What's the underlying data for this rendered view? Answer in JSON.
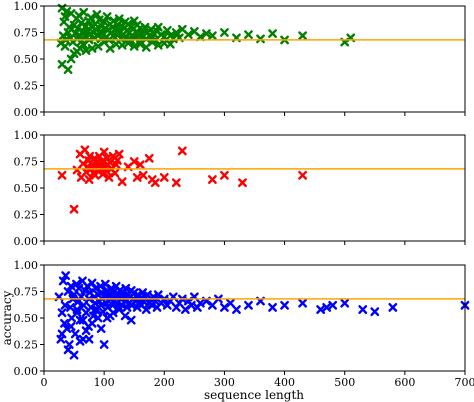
{
  "chart_data": [
    {
      "type": "scatter",
      "title": "",
      "xlabel": "",
      "ylabel": "",
      "xlim": [
        0,
        700
      ],
      "ylim": [
        0,
        1.0
      ],
      "yticks": [
        "0.00",
        "0.25",
        "0.50",
        "0.75",
        "1.00"
      ],
      "xticks": [],
      "grid": false,
      "legend": "none",
      "marker": "x",
      "color": "#008000",
      "reference_line": {
        "y": 0.68,
        "color": "#ffa500"
      },
      "series": [
        {
          "x": [
            28,
            30,
            32,
            33,
            35,
            36,
            38,
            40,
            42,
            44,
            45,
            46,
            48,
            50,
            52,
            54,
            55,
            56,
            58,
            60,
            62,
            63,
            65,
            66,
            68,
            70,
            72,
            74,
            75,
            76,
            78,
            80,
            82,
            84,
            85,
            86,
            88,
            90,
            92,
            94,
            95,
            96,
            98,
            100,
            102,
            104,
            105,
            106,
            108,
            110,
            112,
            114,
            115,
            116,
            118,
            120,
            122,
            124,
            125,
            126,
            128,
            130,
            132,
            134,
            135,
            136,
            138,
            140,
            142,
            144,
            145,
            146,
            148,
            150,
            152,
            154,
            155,
            156,
            158,
            160,
            162,
            164,
            165,
            168,
            170,
            172,
            175,
            178,
            180,
            182,
            185,
            188,
            190,
            195,
            200,
            205,
            210,
            215,
            220,
            225,
            230,
            240,
            250,
            260,
            270,
            280,
            300,
            320,
            340,
            360,
            380,
            400,
            430,
            500,
            510,
            30,
            40,
            50,
            60,
            70,
            35,
            45,
            55,
            65,
            80,
            90,
            100,
            110,
            120,
            130,
            140,
            150,
            160,
            170,
            180,
            190,
            200,
            210
          ],
          "y": [
            0.65,
            0.98,
            0.72,
            0.85,
            0.9,
            0.68,
            0.95,
            0.75,
            0.8,
            0.7,
            0.93,
            0.78,
            0.66,
            0.82,
            0.74,
            0.88,
            0.69,
            0.79,
            0.91,
            0.72,
            0.84,
            0.67,
            0.76,
            0.94,
            0.71,
            0.81,
            0.77,
            0.86,
            0.68,
            0.73,
            0.89,
            0.8,
            0.75,
            0.7,
            0.83,
            0.78,
            0.92,
            0.72,
            0.87,
            0.76,
            0.69,
            0.81,
            0.74,
            0.85,
            0.79,
            0.71,
            0.9,
            0.77,
            0.68,
            0.83,
            0.75,
            0.8,
            0.72,
            0.86,
            0.7,
            0.78,
            0.82,
            0.74,
            0.88,
            0.76,
            0.69,
            0.81,
            0.73,
            0.79,
            0.85,
            0.7,
            0.77,
            0.83,
            0.75,
            0.68,
            0.8,
            0.72,
            0.78,
            0.86,
            0.7,
            0.76,
            0.82,
            0.74,
            0.66,
            0.79,
            0.73,
            0.71,
            0.77,
            0.8,
            0.69,
            0.75,
            0.72,
            0.78,
            0.7,
            0.74,
            0.68,
            0.76,
            0.8,
            0.73,
            0.71,
            0.77,
            0.72,
            0.69,
            0.75,
            0.7,
            0.78,
            0.73,
            0.76,
            0.71,
            0.74,
            0.72,
            0.75,
            0.7,
            0.73,
            0.69,
            0.74,
            0.68,
            0.72,
            0.66,
            0.7,
            0.45,
            0.4,
            0.55,
            0.6,
            0.58,
            0.62,
            0.5,
            0.57,
            0.64,
            0.6,
            0.62,
            0.66,
            0.6,
            0.64,
            0.63,
            0.65,
            0.62,
            0.64,
            0.61,
            0.66,
            0.63,
            0.65,
            0.64
          ]
        }
      ]
    },
    {
      "type": "scatter",
      "title": "",
      "xlabel": "",
      "ylabel": "",
      "xlim": [
        0,
        700
      ],
      "ylim": [
        0,
        1.0
      ],
      "yticks": [
        "0.00",
        "0.25",
        "0.50",
        "0.75",
        "1.00"
      ],
      "xticks": [],
      "grid": false,
      "legend": "none",
      "marker": "x",
      "color": "#ff0000",
      "reference_line": {
        "y": 0.68,
        "color": "#ffa500"
      },
      "series": [
        {
          "x": [
            30,
            50,
            55,
            60,
            62,
            65,
            68,
            70,
            72,
            74,
            75,
            76,
            78,
            80,
            82,
            84,
            85,
            86,
            88,
            90,
            92,
            94,
            95,
            96,
            98,
            100,
            102,
            104,
            105,
            106,
            108,
            110,
            112,
            115,
            118,
            120,
            122,
            125,
            130,
            140,
            150,
            155,
            160,
            165,
            175,
            180,
            185,
            200,
            220,
            230,
            280,
            300,
            330,
            430
          ],
          "y": [
            0.62,
            0.3,
            0.67,
            0.82,
            0.6,
            0.73,
            0.86,
            0.65,
            0.7,
            0.76,
            0.58,
            0.8,
            0.68,
            0.72,
            0.64,
            0.78,
            0.62,
            0.7,
            0.74,
            0.66,
            0.8,
            0.72,
            0.68,
            0.75,
            0.63,
            0.84,
            0.7,
            0.66,
            0.78,
            0.72,
            0.6,
            0.74,
            0.68,
            0.8,
            0.64,
            0.72,
            0.76,
            0.82,
            0.56,
            0.7,
            0.75,
            0.6,
            0.72,
            0.62,
            0.78,
            0.58,
            0.55,
            0.6,
            0.55,
            0.85,
            0.58,
            0.62,
            0.55,
            0.62
          ]
        }
      ]
    },
    {
      "type": "scatter",
      "title": "",
      "xlabel": "sequence length",
      "ylabel": "accuracy",
      "xlim": [
        0,
        700
      ],
      "ylim": [
        0,
        1.0
      ],
      "yticks": [
        "0.00",
        "0.25",
        "0.50",
        "0.75",
        "1.00"
      ],
      "xticks": [
        "0",
        "100",
        "200",
        "300",
        "400",
        "500",
        "600",
        "700"
      ],
      "grid": false,
      "legend": "none",
      "marker": "x",
      "color": "#0000ff",
      "reference_line": {
        "y": 0.68,
        "color": "#ffa500"
      },
      "series": [
        {
          "x": [
            25,
            28,
            30,
            32,
            34,
            35,
            36,
            38,
            40,
            42,
            44,
            45,
            46,
            48,
            50,
            52,
            54,
            55,
            56,
            58,
            60,
            62,
            64,
            65,
            66,
            68,
            70,
            72,
            74,
            75,
            76,
            78,
            80,
            82,
            84,
            85,
            86,
            88,
            90,
            92,
            94,
            95,
            96,
            98,
            100,
            102,
            104,
            105,
            106,
            108,
            110,
            112,
            114,
            115,
            116,
            118,
            120,
            122,
            124,
            125,
            126,
            128,
            130,
            132,
            134,
            135,
            136,
            138,
            140,
            142,
            144,
            145,
            146,
            148,
            150,
            152,
            154,
            155,
            156,
            158,
            160,
            162,
            164,
            165,
            168,
            170,
            172,
            175,
            178,
            180,
            182,
            185,
            188,
            190,
            195,
            200,
            205,
            210,
            215,
            220,
            225,
            230,
            235,
            240,
            245,
            250,
            255,
            260,
            270,
            280,
            290,
            300,
            310,
            320,
            340,
            360,
            380,
            400,
            430,
            460,
            470,
            480,
            500,
            530,
            550,
            580,
            700,
            40,
            50,
            60,
            70,
            80,
            90,
            100,
            110,
            30,
            45,
            55,
            65,
            75,
            85,
            95,
            105,
            115,
            125,
            135,
            145
          ],
          "y": [
            0.7,
            0.3,
            0.55,
            0.85,
            0.45,
            0.62,
            0.9,
            0.4,
            0.75,
            0.25,
            0.6,
            0.8,
            0.5,
            0.68,
            0.72,
            0.35,
            0.82,
            0.58,
            0.65,
            0.78,
            0.48,
            0.7,
            0.85,
            0.3,
            0.62,
            0.76,
            0.55,
            0.8,
            0.42,
            0.68,
            0.74,
            0.6,
            0.83,
            0.52,
            0.7,
            0.64,
            0.78,
            0.58,
            0.72,
            0.66,
            0.8,
            0.62,
            0.74,
            0.56,
            0.7,
            0.82,
            0.64,
            0.76,
            0.6,
            0.72,
            0.68,
            0.78,
            0.62,
            0.74,
            0.66,
            0.7,
            0.8,
            0.64,
            0.72,
            0.58,
            0.76,
            0.68,
            0.62,
            0.74,
            0.7,
            0.66,
            0.78,
            0.6,
            0.72,
            0.64,
            0.7,
            0.76,
            0.62,
            0.68,
            0.74,
            0.66,
            0.7,
            0.6,
            0.72,
            0.64,
            0.68,
            0.62,
            0.74,
            0.66,
            0.7,
            0.58,
            0.72,
            0.64,
            0.68,
            0.62,
            0.7,
            0.66,
            0.6,
            0.72,
            0.64,
            0.68,
            0.62,
            0.66,
            0.7,
            0.6,
            0.64,
            0.68,
            0.58,
            0.66,
            0.62,
            0.7,
            0.6,
            0.64,
            0.66,
            0.62,
            0.68,
            0.6,
            0.64,
            0.58,
            0.62,
            0.66,
            0.6,
            0.62,
            0.64,
            0.58,
            0.6,
            0.62,
            0.64,
            0.58,
            0.56,
            0.6,
            0.62,
            0.2,
            0.15,
            0.28,
            0.38,
            0.45,
            0.5,
            0.25,
            0.52,
            0.35,
            0.42,
            0.55,
            0.48,
            0.3,
            0.58,
            0.4,
            0.5,
            0.55,
            0.6,
            0.52,
            0.48
          ]
        }
      ]
    }
  ]
}
